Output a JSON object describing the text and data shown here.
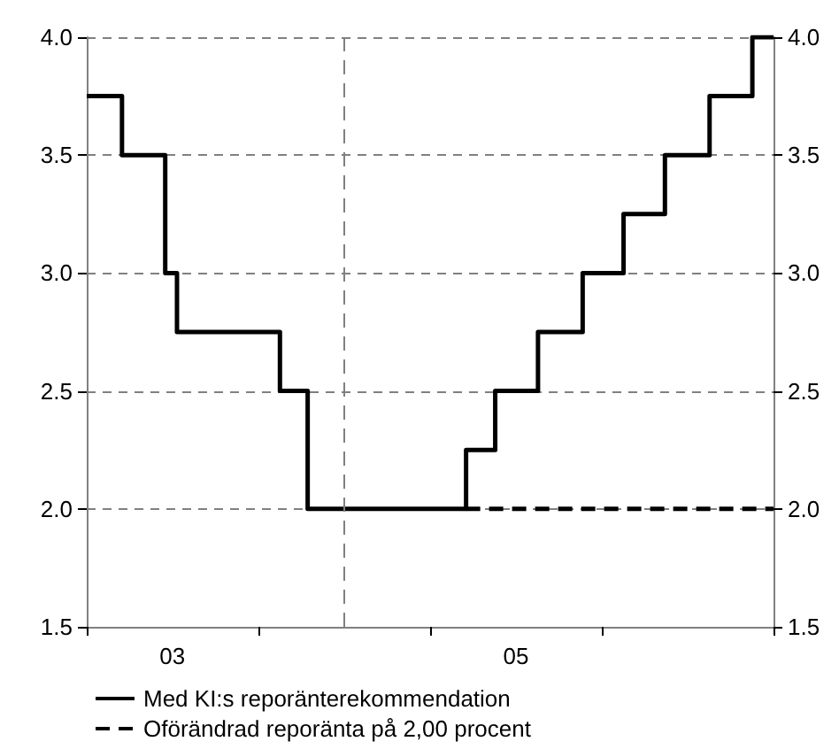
{
  "chart_data": {
    "type": "step",
    "xlim": [
      "2003-01-01",
      "2007-01-01"
    ],
    "xticks": [
      {
        "value": "2003-01-01",
        "label": null
      },
      {
        "value": "2003-07-02",
        "label": "03"
      },
      {
        "value": "2004-01-01",
        "label": null
      },
      {
        "value": "2005-01-01",
        "label": null
      },
      {
        "value": "2005-07-02",
        "label": "05"
      },
      {
        "value": "2006-01-01",
        "label": null
      },
      {
        "value": "2007-01-01",
        "label": null
      }
    ],
    "ylim": [
      1.5,
      4.0
    ],
    "yticks": [
      {
        "value": 1.5,
        "label": "1.5"
      },
      {
        "value": 2.0,
        "label": "2.0"
      },
      {
        "value": 2.5,
        "label": "2.5"
      },
      {
        "value": 3.0,
        "label": "3.0"
      },
      {
        "value": 3.5,
        "label": "3.5"
      },
      {
        "value": 4.0,
        "label": "4.0"
      }
    ],
    "y2lim": [
      1.5,
      4.0
    ],
    "y2ticks": [
      {
        "value": 1.5,
        "label": "1.5"
      },
      {
        "value": 2.0,
        "label": "2.0"
      },
      {
        "value": 2.5,
        "label": "2.5"
      },
      {
        "value": 3.0,
        "label": "3.0"
      },
      {
        "value": 3.5,
        "label": "3.5"
      },
      {
        "value": 4.0,
        "label": "4.0"
      }
    ],
    "series": [
      {
        "name": "Med KI:s reporänterekommendation",
        "color": "#000000",
        "line_style": "solid",
        "x": [
          "2003-01-01",
          "2003-03-17",
          "2003-06-17",
          "2003-07-12",
          "2004-02-16",
          "2004-04-15",
          "2005-03-18",
          "2005-05-19",
          "2005-08-18",
          "2005-11-21",
          "2006-02-16",
          "2006-05-15",
          "2006-08-18",
          "2006-11-17",
          "2007-01-01"
        ],
        "values": [
          3.75,
          3.5,
          3.0,
          2.75,
          2.5,
          2.0,
          2.25,
          2.5,
          2.75,
          3.0,
          3.25,
          3.5,
          3.75,
          4.0,
          4.0
        ]
      },
      {
        "name": "Oförändrad reporänta på 2,00 procent",
        "type": "line",
        "color": "#000000",
        "line_style": "dashed",
        "x": [
          "2005-03-18",
          "2007-01-01"
        ],
        "values": [
          2.0,
          2.0
        ]
      }
    ],
    "ref_lines": [
      {
        "axis": "x",
        "value": "2004-07-01",
        "color": "#808080",
        "line_style": "dashed"
      }
    ],
    "grid": "y",
    "legend": "bottom",
    "marker": "none"
  }
}
